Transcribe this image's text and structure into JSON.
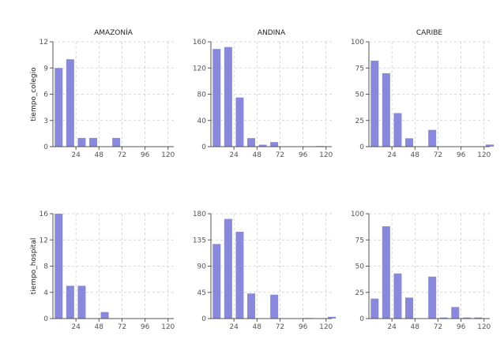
{
  "chart_data": {
    "type": "bar",
    "layout": "faceted-grid",
    "grid": true,
    "columns": [
      "AMAZONÍA",
      "ANDINA",
      "CARIBE"
    ],
    "rows": [
      "tiempo_colegio",
      "tiempo_hospital"
    ],
    "x_ticks": [
      24,
      48,
      72,
      96,
      120
    ],
    "xlim": [
      0,
      126
    ],
    "bar_x": [
      6,
      18,
      30,
      42,
      54,
      66,
      78,
      90,
      102,
      114,
      126
    ],
    "bar_color": "#8888dd",
    "panels": [
      {
        "row": "tiempo_colegio",
        "column": "AMAZONÍA",
        "ylim": [
          0,
          12
        ],
        "y_ticks": [
          0,
          3,
          6,
          9,
          12
        ],
        "values": [
          9,
          10,
          1,
          1,
          0,
          1,
          0,
          0,
          0,
          0,
          0
        ]
      },
      {
        "row": "tiempo_colegio",
        "column": "ANDINA",
        "ylim": [
          0,
          160
        ],
        "y_ticks": [
          0,
          40,
          80,
          120,
          160
        ],
        "values": [
          149,
          152,
          75,
          13,
          3,
          7,
          0,
          0,
          0,
          1,
          0
        ]
      },
      {
        "row": "tiempo_colegio",
        "column": "CARIBE",
        "ylim": [
          0,
          100
        ],
        "y_ticks": [
          0,
          25,
          50,
          75,
          100
        ],
        "values": [
          82,
          70,
          32,
          8,
          0,
          16,
          0,
          0,
          0,
          0,
          2
        ]
      },
      {
        "row": "tiempo_hospital",
        "column": "AMAZONÍA",
        "ylim": [
          0,
          16
        ],
        "y_ticks": [
          0,
          4,
          8,
          12,
          16
        ],
        "values": [
          16,
          5,
          5,
          0,
          1,
          0,
          0,
          0,
          0,
          0,
          0
        ]
      },
      {
        "row": "tiempo_hospital",
        "column": "ANDINA",
        "ylim": [
          0,
          180
        ],
        "y_ticks": [
          0,
          45,
          90,
          135,
          180
        ],
        "values": [
          128,
          171,
          149,
          43,
          0,
          41,
          0,
          0,
          1,
          0,
          3
        ]
      },
      {
        "row": "tiempo_hospital",
        "column": "CARIBE",
        "ylim": [
          0,
          100
        ],
        "y_ticks": [
          0,
          25,
          50,
          75,
          100
        ],
        "values": [
          19,
          88,
          43,
          20,
          0,
          40,
          1,
          11,
          1,
          1,
          0
        ]
      }
    ]
  }
}
